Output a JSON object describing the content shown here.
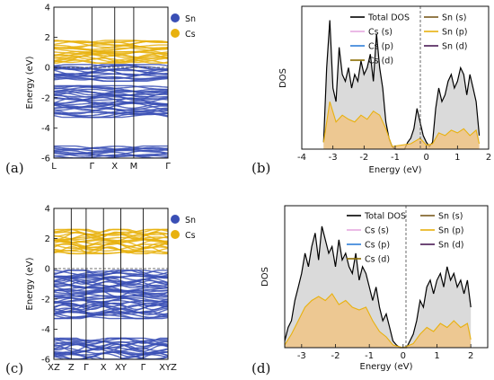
{
  "chart_data": [
    {
      "panel": "(a)",
      "type": "line",
      "ylabel": "Energy (eV)",
      "ylim": [
        -6,
        4
      ],
      "yticks": [
        4,
        2,
        0,
        -2,
        -4,
        -6
      ],
      "kpath": [
        "L",
        "Γ",
        "X",
        "M",
        "Γ"
      ],
      "kpath_positions": [
        0,
        1,
        1.6,
        2.1,
        3.0
      ],
      "fermi_level": 0,
      "legend": [
        {
          "label": "Sn",
          "color": "#3a4fb5"
        },
        {
          "label": "Cs",
          "color": "#e8b10e"
        }
      ],
      "band_groups": [
        {
          "element": "Sn",
          "color": "#3a4fb5",
          "emin": -6.0,
          "emax": -5.2
        },
        {
          "element": "Sn",
          "color": "#3a4fb5",
          "emin": -3.3,
          "emax": -1.2
        },
        {
          "element": "Sn",
          "color": "#3a4fb5",
          "emin": -0.9,
          "emax": 0.2
        },
        {
          "element": "Cs",
          "color": "#e8b10e",
          "emin": 0.3,
          "emax": 1.8
        }
      ]
    },
    {
      "panel": "(b)",
      "type": "area",
      "xlabel": "Energy (eV)",
      "ylabel": "DOS",
      "xlim": [
        -4,
        2
      ],
      "xticks": [
        -4,
        -3,
        -2,
        -1,
        0,
        1,
        2
      ],
      "fermi_level": 0,
      "legend": [
        {
          "label": "Total DOS",
          "color": "#000000"
        },
        {
          "label": "Cs (s)",
          "color": "#e6a8e0"
        },
        {
          "label": "Cs (p)",
          "color": "#2f7fd8"
        },
        {
          "label": "Cs (d)",
          "color": "#8a6d00"
        },
        {
          "label": "Sn (s)",
          "color": "#7a5a1e"
        },
        {
          "label": "Sn (p)",
          "color": "#e8b10e"
        },
        {
          "label": "Sn (d)",
          "color": "#4a1a55"
        }
      ],
      "series": [
        {
          "name": "Total DOS",
          "x": [
            -3.3,
            -3.2,
            -3.1,
            -3.0,
            -2.9,
            -2.8,
            -2.7,
            -2.6,
            -2.5,
            -2.4,
            -2.3,
            -2.2,
            -2.1,
            -2.0,
            -1.9,
            -1.8,
            -1.7,
            -1.6,
            -1.5,
            -1.4,
            -1.3,
            -1.2,
            -1.1,
            -1.0,
            -0.9,
            -0.8,
            -0.7,
            -0.6,
            -0.5,
            -0.4,
            -0.3,
            -0.2,
            -0.1,
            0.0,
            0.1,
            0.2,
            0.3,
            0.4,
            0.5,
            0.6,
            0.7,
            0.8,
            0.9,
            1.0,
            1.1,
            1.2,
            1.3,
            1.4,
            1.5,
            1.6,
            1.7
          ],
          "y": [
            0.05,
            0.6,
            0.95,
            0.45,
            0.35,
            0.75,
            0.55,
            0.5,
            0.6,
            0.45,
            0.55,
            0.5,
            0.65,
            0.55,
            0.6,
            0.7,
            0.5,
            0.85,
            0.6,
            0.45,
            0.2,
            0.08,
            0.02,
            0.0,
            0.0,
            0.0,
            0.0,
            0.05,
            0.08,
            0.15,
            0.3,
            0.2,
            0.1,
            0.05,
            0.02,
            0.05,
            0.3,
            0.45,
            0.35,
            0.4,
            0.5,
            0.55,
            0.45,
            0.5,
            0.6,
            0.55,
            0.4,
            0.55,
            0.45,
            0.35,
            0.1
          ]
        },
        {
          "name": "Sn (p)",
          "x": [
            -3.3,
            -3.1,
            -2.9,
            -2.7,
            -2.5,
            -2.3,
            -2.1,
            -1.9,
            -1.7,
            -1.5,
            -1.3,
            -1.1,
            -0.5,
            -0.2,
            0.0,
            0.2,
            0.4,
            0.6,
            0.8,
            1.0,
            1.2,
            1.4,
            1.6,
            1.7
          ],
          "y": [
            0.05,
            0.35,
            0.2,
            0.25,
            0.22,
            0.2,
            0.25,
            0.22,
            0.28,
            0.25,
            0.15,
            0.02,
            0.04,
            0.08,
            0.03,
            0.04,
            0.12,
            0.1,
            0.14,
            0.12,
            0.15,
            0.1,
            0.14,
            0.04
          ]
        }
      ]
    },
    {
      "panel": "(c)",
      "type": "line",
      "ylabel": "Energy (eV)",
      "ylim": [
        -6,
        4
      ],
      "yticks": [
        4,
        2,
        0,
        -2,
        -4,
        -6
      ],
      "kpath": [
        "XZ",
        "Z",
        "Γ",
        "X",
        "XY",
        "Γ",
        "XYZ"
      ],
      "kpath_positions": [
        0,
        0.7,
        1.3,
        2.0,
        2.7,
        3.6,
        4.6
      ],
      "fermi_level": 0,
      "legend": [
        {
          "label": "Sn",
          "color": "#3a4fb5"
        },
        {
          "label": "Cs",
          "color": "#e8b10e"
        }
      ],
      "band_groups": [
        {
          "element": "Sn",
          "color": "#3a4fb5",
          "emin": -6.0,
          "emax": -4.6
        },
        {
          "element": "Sn",
          "color": "#3a4fb5",
          "emin": -3.3,
          "emax": -0.1
        },
        {
          "element": "Cs",
          "color": "#e8b10e",
          "emin": 1.0,
          "emax": 2.6
        }
      ]
    },
    {
      "panel": "(d)",
      "type": "area",
      "xlabel": "Energy (eV)",
      "ylabel": "DOS",
      "xlim": [
        -3.5,
        2.5
      ],
      "xticks": [
        -3,
        -2,
        -1,
        0,
        1,
        2
      ],
      "fermi_level": 0,
      "legend": [
        {
          "label": "Total DOS",
          "color": "#000000"
        },
        {
          "label": "Cs (s)",
          "color": "#e6a8e0"
        },
        {
          "label": "Cs (p)",
          "color": "#2f7fd8"
        },
        {
          "label": "Cs (d)",
          "color": "#8a6d00"
        },
        {
          "label": "Sn (s)",
          "color": "#7a5a1e"
        },
        {
          "label": "Sn (p)",
          "color": "#e8b10e"
        },
        {
          "label": "Sn (d)",
          "color": "#4a1a55"
        }
      ],
      "series": [
        {
          "name": "Total DOS",
          "x": [
            -3.5,
            -3.4,
            -3.3,
            -3.2,
            -3.1,
            -3.0,
            -2.9,
            -2.8,
            -2.7,
            -2.6,
            -2.5,
            -2.4,
            -2.3,
            -2.2,
            -2.1,
            -2.0,
            -1.9,
            -1.8,
            -1.7,
            -1.6,
            -1.5,
            -1.4,
            -1.3,
            -1.2,
            -1.1,
            -1.0,
            -0.9,
            -0.8,
            -0.7,
            -0.6,
            -0.5,
            -0.4,
            -0.3,
            -0.2,
            -0.1,
            0.0,
            0.1,
            0.2,
            0.3,
            0.4,
            0.5,
            0.6,
            0.7,
            0.8,
            0.9,
            1.0,
            1.1,
            1.2,
            1.3,
            1.4,
            1.5,
            1.6,
            1.7,
            1.8,
            1.9,
            2.0
          ],
          "y": [
            0.05,
            0.15,
            0.2,
            0.35,
            0.45,
            0.55,
            0.7,
            0.6,
            0.75,
            0.85,
            0.65,
            0.9,
            0.8,
            0.7,
            0.75,
            0.6,
            0.8,
            0.65,
            0.7,
            0.6,
            0.55,
            0.7,
            0.5,
            0.6,
            0.55,
            0.45,
            0.35,
            0.45,
            0.3,
            0.2,
            0.25,
            0.15,
            0.05,
            0.02,
            0.0,
            0.0,
            0.0,
            0.05,
            0.1,
            0.2,
            0.35,
            0.3,
            0.45,
            0.5,
            0.4,
            0.5,
            0.55,
            0.45,
            0.6,
            0.5,
            0.55,
            0.45,
            0.5,
            0.4,
            0.5,
            0.3
          ]
        },
        {
          "name": "Sn (p)",
          "x": [
            -3.5,
            -3.3,
            -3.1,
            -2.9,
            -2.7,
            -2.5,
            -2.3,
            -2.1,
            -1.9,
            -1.7,
            -1.5,
            -1.3,
            -1.1,
            -0.9,
            -0.7,
            -0.5,
            -0.3,
            0.0,
            0.3,
            0.5,
            0.7,
            0.9,
            1.1,
            1.3,
            1.5,
            1.7,
            1.9,
            2.0
          ],
          "y": [
            0.02,
            0.1,
            0.2,
            0.3,
            0.35,
            0.38,
            0.35,
            0.4,
            0.32,
            0.35,
            0.3,
            0.28,
            0.3,
            0.2,
            0.12,
            0.08,
            0.02,
            0.0,
            0.03,
            0.1,
            0.15,
            0.12,
            0.18,
            0.15,
            0.2,
            0.15,
            0.18,
            0.06
          ]
        }
      ]
    }
  ]
}
